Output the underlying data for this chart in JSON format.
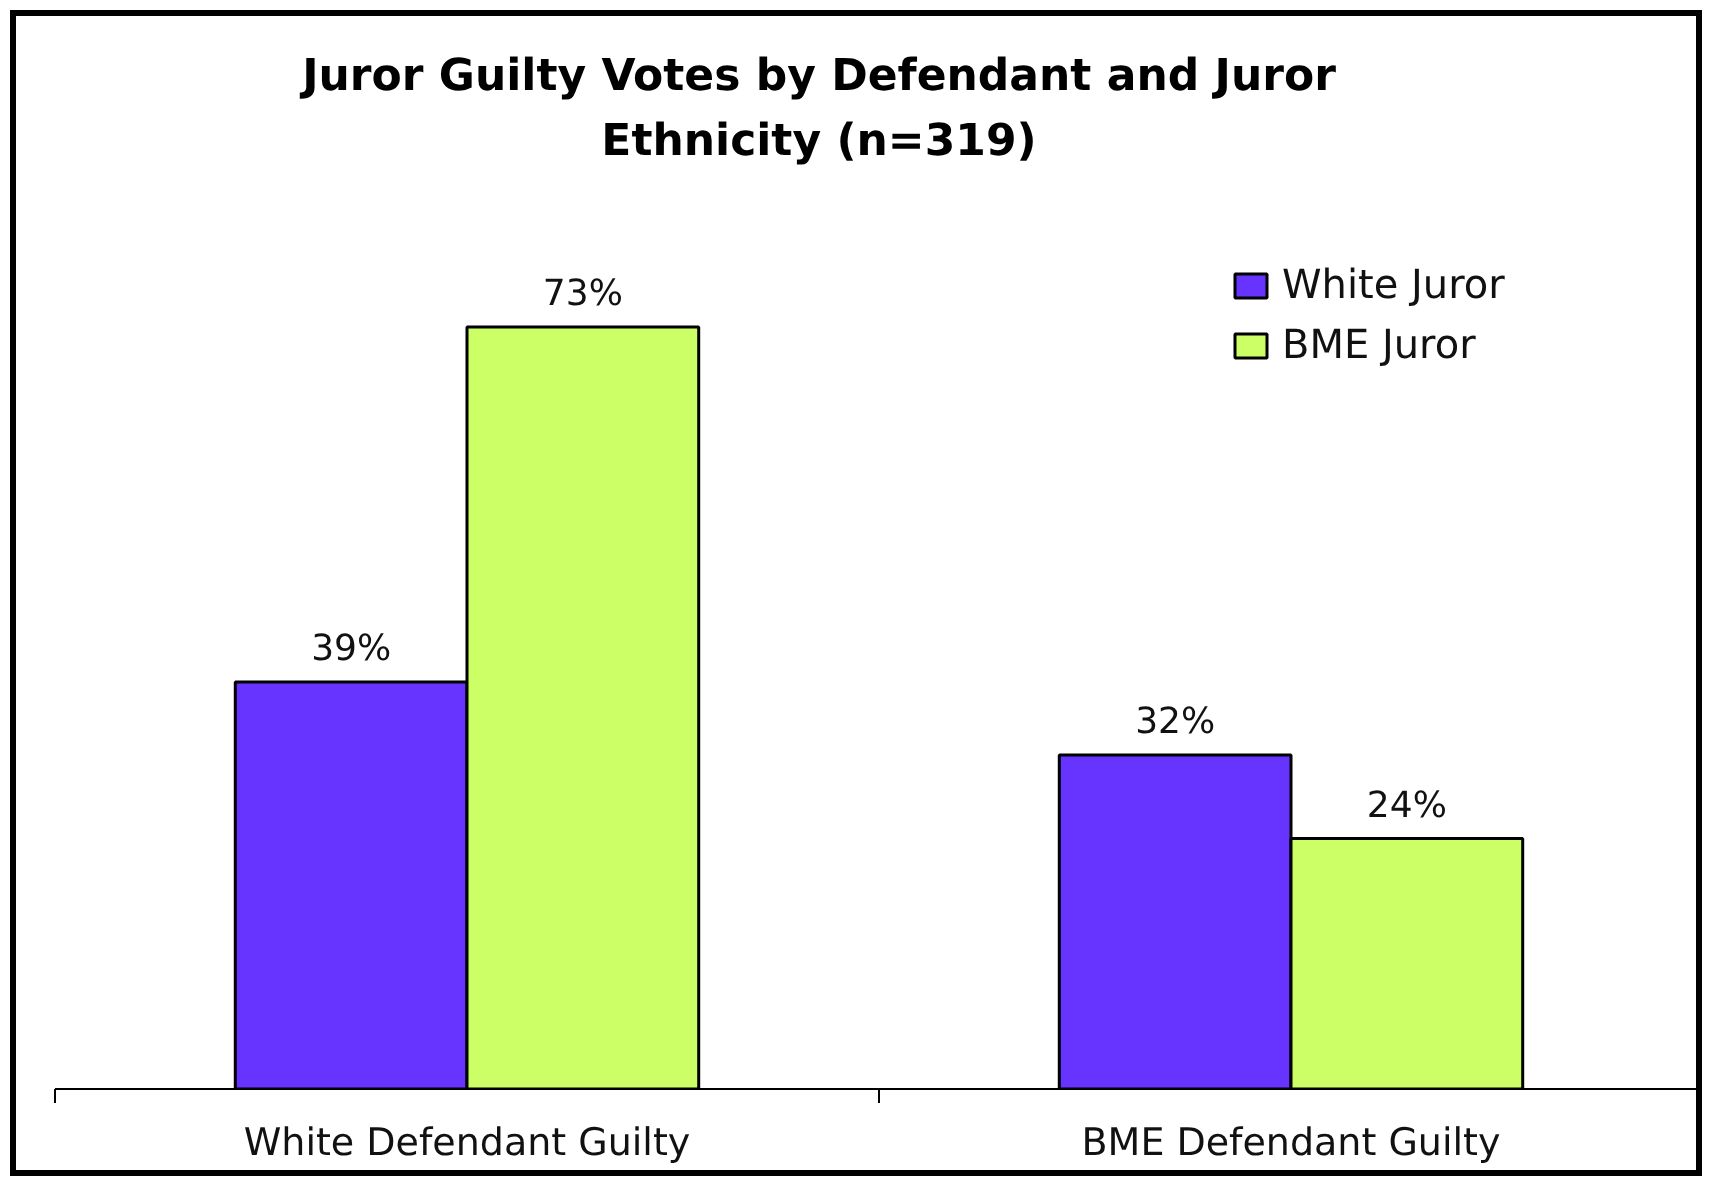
{
  "chart_data": {
    "type": "bar",
    "title": "Juror Guilty Votes by Defendant and Juror Ethnicity (n=319)",
    "categories": [
      "White Defendant Guilty",
      "BME Defendant Guilty"
    ],
    "series": [
      {
        "name": "White Juror",
        "color": "#6633ff",
        "values": [
          39,
          32
        ],
        "value_labels": [
          "39%",
          "32%"
        ]
      },
      {
        "name": "BME Juror",
        "color": "#ccff66",
        "values": [
          73,
          24
        ],
        "value_labels": [
          "73%",
          "24%"
        ]
      }
    ],
    "legend": "top right",
    "tick_labels": "x"
  }
}
